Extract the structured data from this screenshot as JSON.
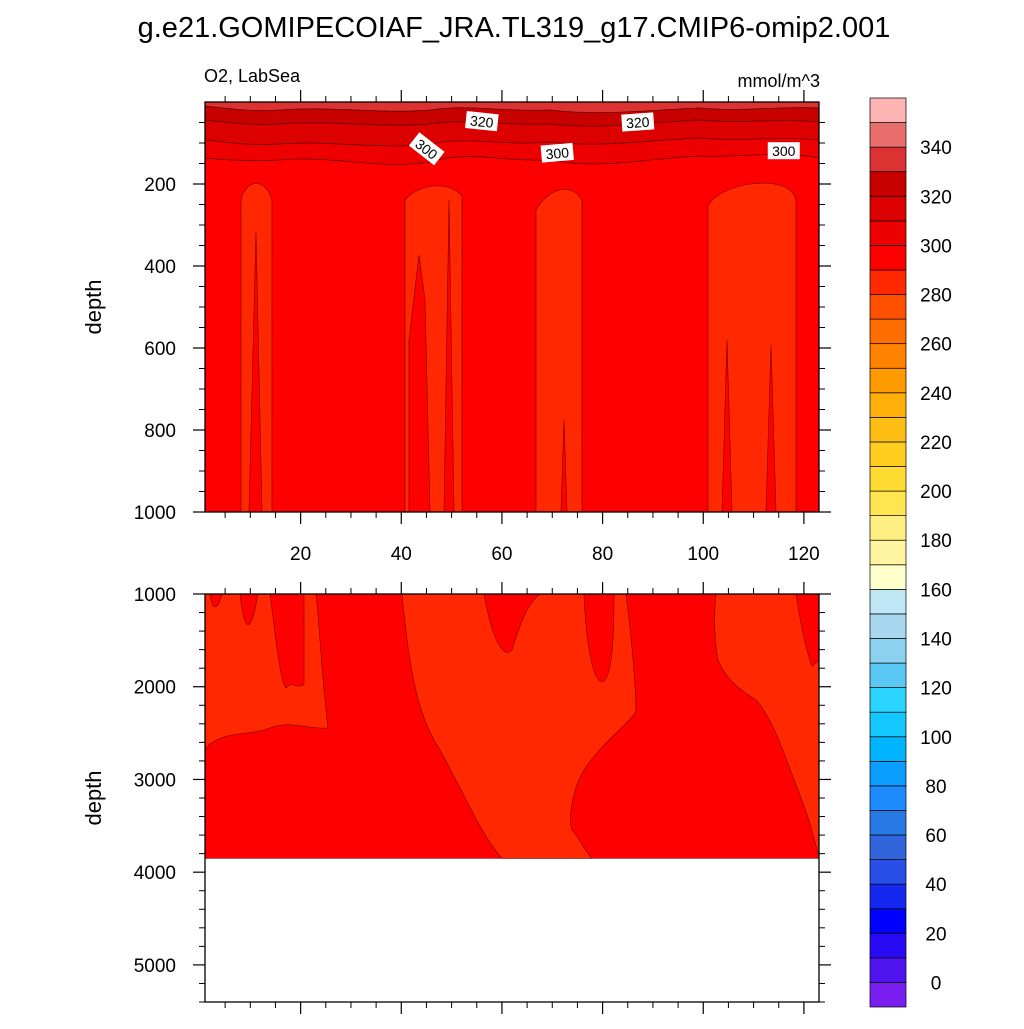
{
  "title": "g.e21.GOMIPECOIAF_JRA.TL319_g17.CMIP6-omip2.001",
  "chart_data": {
    "type": "heatmap",
    "variable_label": "O2, LabSea",
    "units_label": "mmol/m^3",
    "ylabel": "depth",
    "panels": [
      {
        "id": "upper",
        "ylim": [
          1000,
          0
        ],
        "xlim": [
          1,
          123
        ],
        "xticks": [
          20,
          40,
          60,
          80,
          100,
          120
        ],
        "yticks": [
          200,
          400,
          600,
          800,
          1000
        ],
        "contour_labels": [
          {
            "text": "320",
            "x": 56,
            "depth": 48,
            "angle": 6
          },
          {
            "text": "320",
            "x": 87,
            "depth": 50,
            "angle": -4
          },
          {
            "text": "300",
            "x": 45,
            "depth": 115,
            "angle": 38
          },
          {
            "text": "300",
            "x": 71,
            "depth": 125,
            "angle": -5
          },
          {
            "text": "300",
            "x": 116,
            "depth": 120,
            "angle": 0
          }
        ]
      },
      {
        "id": "lower",
        "ylim": [
          1000,
          5400
        ],
        "xlim": [
          1,
          123
        ],
        "yticks": [
          1000,
          2000,
          3000,
          4000,
          5000
        ],
        "data_bottom_depth": 3850
      }
    ],
    "colorbar": {
      "tick_labels": [
        "0",
        "20",
        "40",
        "60",
        "80",
        "100",
        "120",
        "140",
        "160",
        "180",
        "200",
        "220",
        "240",
        "260",
        "280",
        "300",
        "320",
        "340"
      ],
      "levels": [
        -10,
        0,
        10,
        20,
        30,
        40,
        50,
        60,
        70,
        80,
        90,
        100,
        110,
        120,
        130,
        140,
        150,
        160,
        170,
        180,
        190,
        200,
        210,
        220,
        230,
        240,
        250,
        260,
        270,
        280,
        290,
        300,
        310,
        320,
        330,
        340,
        350,
        360
      ],
      "colors": [
        "#7a1ef0",
        "#5014f0",
        "#2a0af5",
        "#0000ff",
        "#1428f0",
        "#2850e8",
        "#3264dc",
        "#2878e6",
        "#1e8cff",
        "#0a9eff",
        "#00b4ff",
        "#14c8ff",
        "#2ad4ff",
        "#5ac8f5",
        "#8cd2f0",
        "#a8d8f0",
        "#bee6f5",
        "#ffffcc",
        "#fff5a0",
        "#ffee82",
        "#ffe650",
        "#ffdc32",
        "#ffcd1e",
        "#ffbe14",
        "#ffaf0a",
        "#ff9b00",
        "#ff8200",
        "#ff6e00",
        "#ff5000",
        "#ff2800",
        "#ff0000",
        "#ee0000",
        "#dc0000",
        "#c80000",
        "#dc3232",
        "#e86e6e",
        "#ffb4b4"
      ]
    }
  }
}
